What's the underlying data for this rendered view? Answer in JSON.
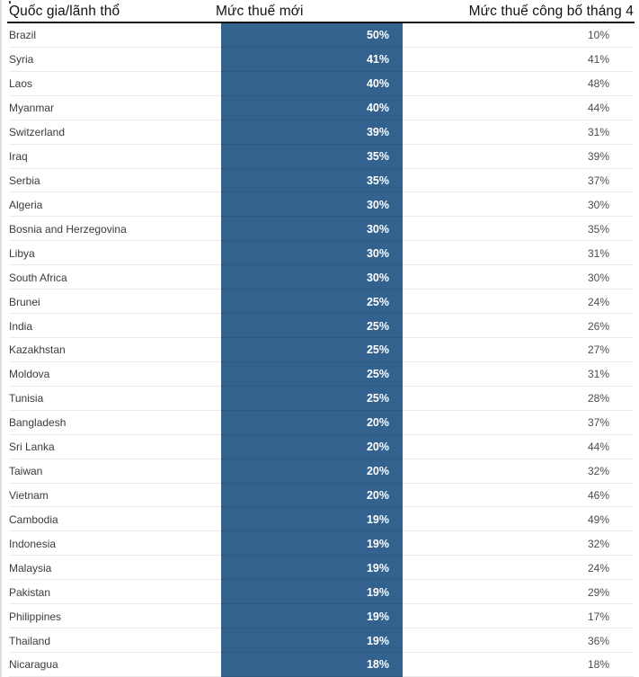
{
  "chart_data": {
    "type": "table",
    "columns": [
      "Quốc gia/lãnh thổ",
      "Mức thuế mới",
      "Mức thuế công bố tháng 4"
    ],
    "unit": "%",
    "highlighted_column": "Mức thuế mới",
    "rows": [
      {
        "country": "Brazil",
        "new_rate": 50,
        "april_rate": 10
      },
      {
        "country": "Syria",
        "new_rate": 41,
        "april_rate": 41
      },
      {
        "country": "Laos",
        "new_rate": 40,
        "april_rate": 48
      },
      {
        "country": "Myanmar",
        "new_rate": 40,
        "april_rate": 44
      },
      {
        "country": "Switzerland",
        "new_rate": 39,
        "april_rate": 31
      },
      {
        "country": "Iraq",
        "new_rate": 35,
        "april_rate": 39
      },
      {
        "country": "Serbia",
        "new_rate": 35,
        "april_rate": 37
      },
      {
        "country": "Algeria",
        "new_rate": 30,
        "april_rate": 30
      },
      {
        "country": "Bosnia and Herzegovina",
        "new_rate": 30,
        "april_rate": 35
      },
      {
        "country": "Libya",
        "new_rate": 30,
        "april_rate": 31
      },
      {
        "country": "South Africa",
        "new_rate": 30,
        "april_rate": 30
      },
      {
        "country": "Brunei",
        "new_rate": 25,
        "april_rate": 24
      },
      {
        "country": "India",
        "new_rate": 25,
        "april_rate": 26
      },
      {
        "country": "Kazakhstan",
        "new_rate": 25,
        "april_rate": 27
      },
      {
        "country": "Moldova",
        "new_rate": 25,
        "april_rate": 31
      },
      {
        "country": "Tunisia",
        "new_rate": 25,
        "april_rate": 28
      },
      {
        "country": "Bangladesh",
        "new_rate": 20,
        "april_rate": 37
      },
      {
        "country": "Sri Lanka",
        "new_rate": 20,
        "april_rate": 44
      },
      {
        "country": "Taiwan",
        "new_rate": 20,
        "april_rate": 32
      },
      {
        "country": "Vietnam",
        "new_rate": 20,
        "april_rate": 46
      },
      {
        "country": "Cambodia",
        "new_rate": 19,
        "april_rate": 49
      },
      {
        "country": "Indonesia",
        "new_rate": 19,
        "april_rate": 32
      },
      {
        "country": "Malaysia",
        "new_rate": 19,
        "april_rate": 24
      },
      {
        "country": "Pakistan",
        "new_rate": 19,
        "april_rate": 29
      },
      {
        "country": "Philippines",
        "new_rate": 19,
        "april_rate": 17
      },
      {
        "country": "Thailand",
        "new_rate": 19,
        "april_rate": 36
      },
      {
        "country": "Nicaragua",
        "new_rate": 18,
        "april_rate": 18
      }
    ]
  },
  "styles": {
    "highlight_color": "#32628d",
    "separator_color": "#ebebeb",
    "header_rule_color": "#141414"
  }
}
